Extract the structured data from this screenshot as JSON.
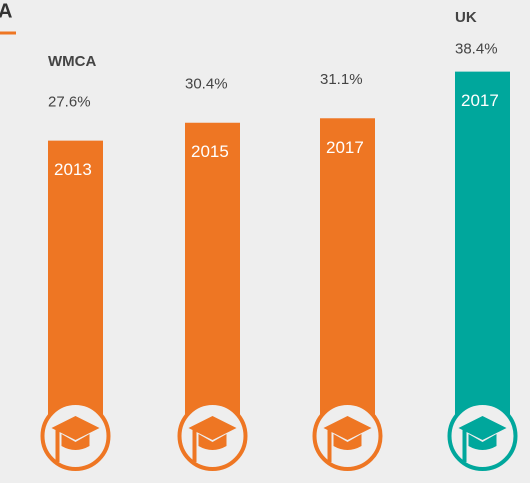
{
  "chart_data": {
    "type": "bar",
    "title": "A",
    "categories": [
      "2013",
      "2015",
      "2017",
      "2017"
    ],
    "values": [
      27.6,
      30.4,
      31.1,
      38.4
    ],
    "value_labels": [
      "27.6%",
      "30.4%",
      "31.1%",
      "38.4%"
    ],
    "colors": [
      "#ee7623",
      "#ee7623",
      "#ee7623",
      "#00a79c"
    ],
    "groups": [
      {
        "name": "WMCA",
        "color": "#ee7623"
      },
      {
        "name": "UK",
        "color": "#00a79c"
      }
    ]
  }
}
